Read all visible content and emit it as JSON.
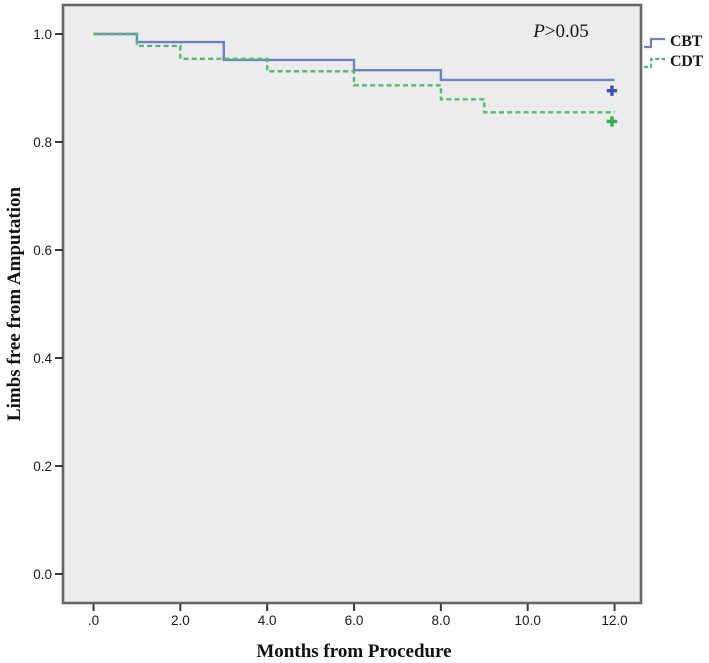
{
  "chart_data": {
    "type": "line",
    "subtype": "kaplan-meier-step",
    "title": "",
    "xlabel": "Months from Procedure",
    "ylabel": "Limbs free from Amputation",
    "xlim": [
      -0.7,
      12.65
    ],
    "ylim": [
      -0.055,
      1.055
    ],
    "grid": false,
    "legend_position": "top-right-outside",
    "annotation": "P>0.05",
    "x_ticks": [
      {
        "value": 0,
        "label": ".0"
      },
      {
        "value": 2,
        "label": "2.0"
      },
      {
        "value": 4,
        "label": "4.0"
      },
      {
        "value": 6,
        "label": "6.0"
      },
      {
        "value": 8,
        "label": "8.0"
      },
      {
        "value": 10,
        "label": "10.0"
      },
      {
        "value": 12,
        "label": "12.0"
      }
    ],
    "y_ticks": [
      {
        "value": 1.0,
        "label": "1.0"
      },
      {
        "value": 0.8,
        "label": "0.8"
      },
      {
        "value": 0.6,
        "label": "0.6"
      },
      {
        "value": 0.4,
        "label": "0.4"
      },
      {
        "value": 0.2,
        "label": "0.2"
      },
      {
        "value": 0.0,
        "label": "0.0"
      }
    ],
    "series": [
      {
        "name": "CBT",
        "color": "#7080c4",
        "line_style": "solid",
        "steps": [
          [
            0,
            1.0
          ],
          [
            1,
            0.985
          ],
          [
            3,
            0.952
          ],
          [
            6,
            0.933
          ],
          [
            8,
            0.915
          ]
        ],
        "end_t": 12,
        "censor_marker": {
          "t": 11.94,
          "v": 0.895,
          "color": "#3b53b3"
        }
      },
      {
        "name": "CDT",
        "color": "#4fbb6e",
        "line_style": "dashed",
        "steps": [
          [
            0,
            1.0
          ],
          [
            1,
            0.978
          ],
          [
            2,
            0.954
          ],
          [
            4,
            0.931
          ],
          [
            6,
            0.905
          ],
          [
            8,
            0.879
          ],
          [
            9,
            0.855
          ]
        ],
        "end_t": 12,
        "censor_marker": {
          "t": 11.94,
          "v": 0.838,
          "color": "#2db24b"
        }
      }
    ],
    "plot_background_color": "#ececec",
    "frame_color": "#686868"
  },
  "annotation": {
    "p_italic": "P",
    "p_rest": ">0.05"
  }
}
